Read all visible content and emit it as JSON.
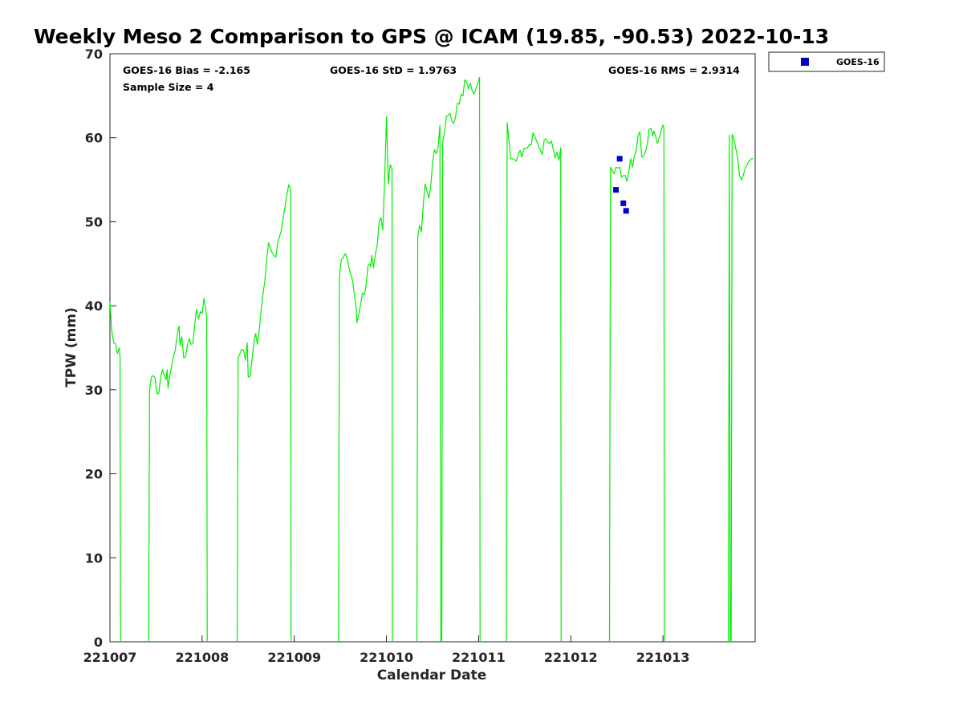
{
  "chart_data": {
    "type": "line",
    "title": "Weekly Meso 2 Comparison to GPS @ ICAM (19.85, -90.53) 2022-10-13",
    "xlabel": "Calendar Date",
    "ylabel": "TPW (mm)",
    "xlim": [
      0,
      7
    ],
    "ylim": [
      0,
      70
    ],
    "x_ticks": [
      {
        "value": 0,
        "label": "221007"
      },
      {
        "value": 1,
        "label": "221008"
      },
      {
        "value": 2,
        "label": "221009"
      },
      {
        "value": 3,
        "label": "221010"
      },
      {
        "value": 4,
        "label": "221011"
      },
      {
        "value": 5,
        "label": "221012"
      },
      {
        "value": 6,
        "label": "221013"
      }
    ],
    "y_ticks": [
      0,
      10,
      20,
      30,
      40,
      50,
      60,
      70
    ],
    "grid": false,
    "legend_position": "outside-top-right",
    "stats": {
      "bias": "GOES-16 Bias = -2.165",
      "std": "GOES-16 StD = 1.9763",
      "rms": "GOES-16 RMS = 2.9314",
      "sample": "Sample Size = 4"
    },
    "series": [
      {
        "type": "line",
        "color": "#00ee00",
        "segments": [
          [
            [
              0.0,
              40.5
            ],
            [
              0.02,
              37
            ],
            [
              0.04,
              35.6
            ],
            [
              0.06,
              35.5
            ],
            [
              0.08,
              34.3
            ],
            [
              0.1,
              35
            ],
            [
              0.11,
              33.8
            ],
            [
              0.115,
              0
            ]
          ],
          [
            [
              0.42,
              0
            ],
            [
              0.43,
              30
            ],
            [
              0.45,
              31.5
            ],
            [
              0.47,
              31.7
            ],
            [
              0.49,
              31.4
            ],
            [
              0.51,
              29.5
            ],
            [
              0.53,
              29.6
            ],
            [
              0.55,
              31.5
            ],
            [
              0.57,
              32.4
            ],
            [
              0.59,
              31.7
            ],
            [
              0.61,
              31.2
            ],
            [
              0.62,
              32.4
            ],
            [
              0.63,
              30.2
            ],
            [
              0.65,
              31.8
            ],
            [
              0.67,
              32.8
            ],
            [
              0.69,
              34
            ],
            [
              0.71,
              34.8
            ],
            [
              0.73,
              36.5
            ],
            [
              0.75,
              37.6
            ],
            [
              0.76,
              35.3
            ],
            [
              0.78,
              36.3
            ],
            [
              0.8,
              33.8
            ],
            [
              0.82,
              33.9
            ],
            [
              0.84,
              35.3
            ],
            [
              0.86,
              36.1
            ],
            [
              0.88,
              35.4
            ],
            [
              0.9,
              35.5
            ],
            [
              0.92,
              37.8
            ],
            [
              0.94,
              39.6
            ],
            [
              0.96,
              38.4
            ],
            [
              0.98,
              39.3
            ],
            [
              1.0,
              39.1
            ],
            [
              1.02,
              40.9
            ],
            [
              1.04,
              39.4
            ],
            [
              1.05,
              38.7
            ],
            [
              1.055,
              0
            ]
          ],
          [
            [
              1.38,
              0
            ],
            [
              1.39,
              33.8
            ],
            [
              1.41,
              34.3
            ],
            [
              1.43,
              34.8
            ],
            [
              1.45,
              34.7
            ],
            [
              1.47,
              33.5
            ],
            [
              1.49,
              35.6
            ],
            [
              1.5,
              31.5
            ],
            [
              1.52,
              31.6
            ],
            [
              1.54,
              33.5
            ],
            [
              1.56,
              35.5
            ],
            [
              1.58,
              36.7
            ],
            [
              1.6,
              35.4
            ],
            [
              1.62,
              37.2
            ],
            [
              1.64,
              39.5
            ],
            [
              1.66,
              41.4
            ],
            [
              1.68,
              42.9
            ],
            [
              1.7,
              45.5
            ],
            [
              1.72,
              47.5
            ],
            [
              1.74,
              46.9
            ],
            [
              1.76,
              46.3
            ],
            [
              1.78,
              46
            ],
            [
              1.8,
              45.8
            ],
            [
              1.82,
              47.5
            ],
            [
              1.84,
              48.2
            ],
            [
              1.86,
              49
            ],
            [
              1.88,
              50.5
            ],
            [
              1.9,
              51.8
            ],
            [
              1.92,
              53.2
            ],
            [
              1.94,
              54.4
            ],
            [
              1.96,
              53.9
            ],
            [
              1.965,
              0
            ]
          ],
          [
            [
              2.48,
              0
            ],
            [
              2.49,
              43.5
            ],
            [
              2.51,
              45.5
            ],
            [
              2.53,
              45.7
            ],
            [
              2.55,
              46.2
            ],
            [
              2.57,
              45.8
            ],
            [
              2.59,
              44.7
            ],
            [
              2.61,
              43.8
            ],
            [
              2.63,
              43.1
            ],
            [
              2.65,
              41.5
            ],
            [
              2.67,
              39.9
            ],
            [
              2.68,
              38
            ],
            [
              2.7,
              39
            ],
            [
              2.72,
              40.2
            ],
            [
              2.74,
              41.5
            ],
            [
              2.76,
              41.3
            ],
            [
              2.78,
              42.5
            ],
            [
              2.8,
              44.8
            ],
            [
              2.82,
              45
            ],
            [
              2.83,
              44.6
            ],
            [
              2.84,
              46
            ],
            [
              2.86,
              44.5
            ],
            [
              2.88,
              46.2
            ],
            [
              2.9,
              47.2
            ],
            [
              2.92,
              50
            ],
            [
              2.94,
              50.5
            ],
            [
              2.96,
              49
            ],
            [
              2.98,
              55
            ],
            [
              3.0,
              62.5
            ],
            [
              3.02,
              54.5
            ],
            [
              3.04,
              56.8
            ],
            [
              3.06,
              56.3
            ],
            [
              3.065,
              0
            ]
          ],
          [
            [
              3.33,
              0
            ],
            [
              3.34,
              48.2
            ],
            [
              3.36,
              49.6
            ],
            [
              3.38,
              48.8
            ],
            [
              3.4,
              52.1
            ],
            [
              3.42,
              54.5
            ],
            [
              3.44,
              53.6
            ],
            [
              3.46,
              52.8
            ],
            [
              3.48,
              54.1
            ],
            [
              3.5,
              57
            ],
            [
              3.52,
              58.6
            ],
            [
              3.54,
              58.1
            ],
            [
              3.56,
              58.9
            ],
            [
              3.58,
              61.5
            ],
            [
              3.59,
              0
            ]
          ],
          [
            [
              3.6,
              0
            ],
            [
              3.61,
              59.5
            ],
            [
              3.63,
              60.6
            ],
            [
              3.65,
              62.5
            ],
            [
              3.67,
              62.7
            ],
            [
              3.69,
              62.9
            ],
            [
              3.71,
              62
            ],
            [
              3.73,
              61.7
            ],
            [
              3.75,
              62.5
            ],
            [
              3.77,
              64.1
            ],
            [
              3.79,
              64
            ],
            [
              3.81,
              65.2
            ],
            [
              3.83,
              65
            ],
            [
              3.85,
              66.9
            ],
            [
              3.87,
              66.6
            ],
            [
              3.89,
              65.8
            ],
            [
              3.91,
              66.5
            ],
            [
              3.93,
              65.6
            ],
            [
              3.95,
              65.2
            ],
            [
              3.97,
              65.8
            ],
            [
              3.99,
              66.5
            ],
            [
              4.01,
              67.2
            ],
            [
              4.015,
              0
            ]
          ],
          [
            [
              4.3,
              0
            ],
            [
              4.31,
              61.8
            ],
            [
              4.33,
              59.5
            ],
            [
              4.35,
              57.5
            ],
            [
              4.37,
              57.5
            ],
            [
              4.39,
              57.4
            ],
            [
              4.41,
              57.2
            ],
            [
              4.43,
              58
            ],
            [
              4.45,
              58.5
            ],
            [
              4.47,
              57.7
            ],
            [
              4.49,
              58.7
            ],
            [
              4.51,
              58.7
            ],
            [
              4.53,
              58.8
            ],
            [
              4.55,
              59.2
            ],
            [
              4.57,
              59.1
            ],
            [
              4.59,
              60.6
            ],
            [
              4.61,
              60.1
            ],
            [
              4.63,
              59.6
            ],
            [
              4.65,
              59
            ],
            [
              4.67,
              58.5
            ],
            [
              4.69,
              58
            ],
            [
              4.71,
              59.7
            ],
            [
              4.73,
              59.9
            ],
            [
              4.75,
              59.5
            ],
            [
              4.77,
              59.3
            ],
            [
              4.79,
              59.6
            ],
            [
              4.81,
              58.6
            ],
            [
              4.83,
              57.6
            ],
            [
              4.85,
              58.3
            ],
            [
              4.87,
              57.3
            ],
            [
              4.89,
              58.8
            ],
            [
              4.895,
              0
            ]
          ],
          [
            [
              5.42,
              0
            ],
            [
              5.43,
              56.5
            ],
            [
              5.45,
              56.1
            ],
            [
              5.47,
              55.7
            ],
            [
              5.49,
              56.5
            ],
            [
              5.51,
              56.4
            ],
            [
              5.53,
              56.5
            ],
            [
              5.55,
              55.3
            ],
            [
              5.57,
              55.5
            ],
            [
              5.59,
              55.5
            ],
            [
              5.61,
              54.8
            ],
            [
              5.63,
              56
            ],
            [
              5.65,
              57.5
            ],
            [
              5.67,
              56.5
            ],
            [
              5.69,
              57.8
            ],
            [
              5.71,
              58.5
            ],
            [
              5.73,
              60.3
            ],
            [
              5.75,
              60.7
            ],
            [
              5.77,
              57.7
            ],
            [
              5.79,
              57.8
            ],
            [
              5.81,
              58.3
            ],
            [
              5.83,
              59.2
            ],
            [
              5.85,
              61
            ],
            [
              5.87,
              61.1
            ],
            [
              5.89,
              60.2
            ],
            [
              5.9,
              60.8
            ],
            [
              5.92,
              60.2
            ],
            [
              5.94,
              59.3
            ],
            [
              5.96,
              60
            ],
            [
              5.98,
              60.8
            ],
            [
              6.0,
              61.5
            ],
            [
              6.01,
              61.2
            ],
            [
              6.015,
              0
            ]
          ],
          [
            [
              6.71,
              0
            ],
            [
              6.72,
              60.3
            ],
            [
              6.73,
              0
            ]
          ],
          [
            [
              6.74,
              0
            ],
            [
              6.75,
              60.4
            ],
            [
              6.77,
              59.8
            ],
            [
              6.79,
              58.7
            ],
            [
              6.81,
              57.6
            ],
            [
              6.83,
              55.5
            ],
            [
              6.85,
              55
            ],
            [
              6.87,
              55.5
            ],
            [
              6.89,
              56.3
            ],
            [
              6.91,
              56.7
            ],
            [
              6.93,
              57.2
            ],
            [
              6.96,
              57.5
            ],
            [
              6.98,
              57.5
            ]
          ]
        ]
      },
      {
        "name": "GOES-16",
        "type": "scatter",
        "color": "#0000cc",
        "points": [
          [
            5.49,
            53.8
          ],
          [
            5.53,
            57.5
          ],
          [
            5.57,
            52.2
          ],
          [
            5.6,
            51.3
          ]
        ]
      }
    ]
  }
}
